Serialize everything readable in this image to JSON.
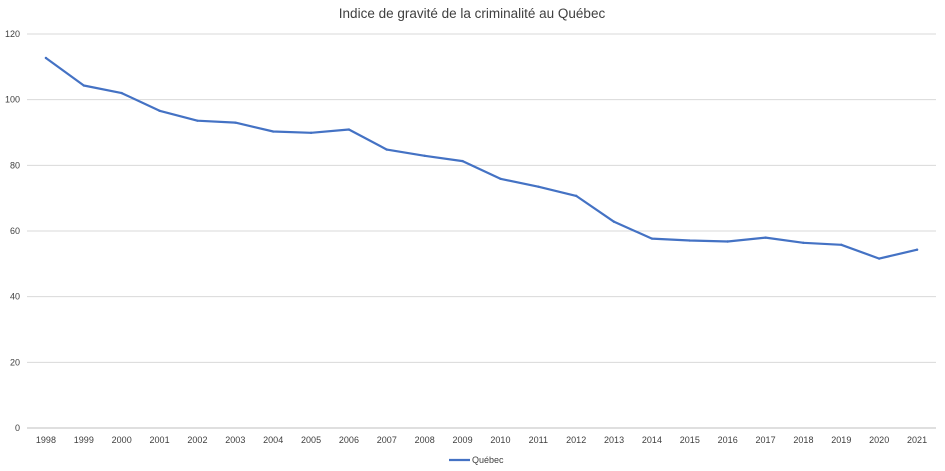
{
  "chart_data": {
    "type": "line",
    "title": "Indice de gravité de la criminalité au Québec",
    "xlabel": "",
    "ylabel": "",
    "ylim": [
      0,
      120
    ],
    "yticks": [
      0,
      20,
      40,
      60,
      80,
      100,
      120
    ],
    "grid": true,
    "legend_position": "bottom",
    "categories": [
      "1998",
      "1999",
      "2000",
      "2001",
      "2002",
      "2003",
      "2004",
      "2005",
      "2006",
      "2007",
      "2008",
      "2009",
      "2010",
      "2011",
      "2012",
      "2013",
      "2014",
      "2015",
      "2016",
      "2017",
      "2018",
      "2019",
      "2020",
      "2021"
    ],
    "series": [
      {
        "name": "Québec",
        "color": "#4472c4",
        "values": [
          112.7,
          104.3,
          102.0,
          96.6,
          93.6,
          93.0,
          90.3,
          89.9,
          90.9,
          84.8,
          82.9,
          81.3,
          75.9,
          73.5,
          70.7,
          62.8,
          57.7,
          57.1,
          56.8,
          58.0,
          56.4,
          55.8,
          51.6,
          54.3
        ]
      }
    ]
  }
}
